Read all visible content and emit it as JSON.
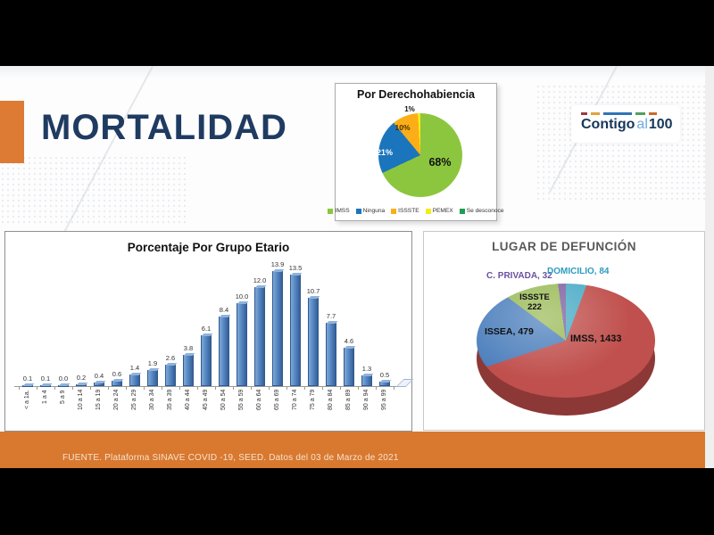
{
  "header": {
    "title": "MORTALIDAD"
  },
  "logo": {
    "word1": "Contigo",
    "word2": "al",
    "word3": "100",
    "text_color": "#16375A",
    "al_color": "#6FA8DC",
    "dash_colors": [
      "#993B3F",
      "#E0A23C",
      "#2F74B5",
      "#51A05E",
      "#C96A2E"
    ],
    "dash_widths": [
      7,
      10,
      32,
      11,
      9
    ]
  },
  "colors": {
    "accent_orange_band": "#D9782F",
    "accent_orange_rect": "#DD7A33",
    "title_navy": "#1F3B61",
    "panel3_title_gray": "#595959",
    "footer_text": "#F4E3CE"
  },
  "footer": {
    "source": "FUENTE. Plataforma SINAVE COVID -19, SEED. Datos del 03 de Marzo de 2021"
  },
  "chart_data": [
    {
      "type": "pie",
      "title": "Por Derechohabiencia",
      "legend_position": "bottom",
      "slices": [
        {
          "label": "IMSS",
          "value": 68,
          "unit": "%",
          "color": "#8CC63E",
          "data_label": "68%",
          "label_color": "#111111"
        },
        {
          "label": "Ninguna",
          "value": 21,
          "unit": "%",
          "color": "#1B75BC",
          "data_label": "21%",
          "label_color": "#FFFFFF"
        },
        {
          "label": "ISSSTE",
          "value": 10,
          "unit": "%",
          "color": "#FBAE17",
          "data_label": "10%",
          "label_color": "#4A2E00"
        },
        {
          "label": "PEMEX",
          "value": 1,
          "unit": "%",
          "color": "#F3EC19",
          "data_label": "1%",
          "label_color": "#111111"
        },
        {
          "label": "Se desconoce",
          "value": 0,
          "unit": "%",
          "color": "#1F9D55",
          "data_label": "",
          "label_color": "#111111"
        }
      ]
    },
    {
      "type": "bar",
      "title": "Porcentaje Por Grupo Etario",
      "categories": [
        "< a 1a.",
        "1 a 4",
        "5 a 9",
        "10 a 14",
        "15 a 19",
        "20 a 24",
        "25 a 29",
        "30 a 34",
        "35 a 39",
        "40 a 44",
        "45 a 49",
        "50 a 54",
        "55 a 59",
        "60 a 64",
        "65 a 69",
        "70 a 74",
        "75 a 79",
        "80 a 84",
        "85 a 89",
        "90 a 94",
        "95 a 99"
      ],
      "values": [
        0.1,
        0.1,
        0.0,
        0.2,
        0.4,
        0.6,
        1.4,
        1.9,
        2.6,
        3.8,
        6.1,
        8.4,
        10.0,
        12.0,
        13.9,
        13.5,
        10.7,
        7.7,
        4.6,
        1.3,
        0.5
      ],
      "bar_color": "#4F81BD",
      "ylim": [
        0,
        15
      ],
      "grid": false,
      "xlabel": "",
      "ylabel": ""
    },
    {
      "type": "pie",
      "title": "LUGAR DE DEFUNCIÓN",
      "style": "3d",
      "slices": [
        {
          "label": "DOMICILIO",
          "value": 84,
          "color": "#4BACC6",
          "data_label": "DOMICILIO, 84",
          "label_color": "#2E9BC0"
        },
        {
          "label": "IMSS",
          "value": 1433,
          "color": "#C0504D",
          "data_label": "IMSS, 1433",
          "label_color": "#111111"
        },
        {
          "label": "ISSEA",
          "value": 479,
          "color": "#4F81BD",
          "data_label": "ISSEA, 479",
          "label_color": "#111111"
        },
        {
          "label": "ISSSTE",
          "value": 222,
          "color": "#9BBB59",
          "data_label": "ISSSTE 222",
          "label_color": "#111111"
        },
        {
          "label": "C. PRIVADA",
          "value": 32,
          "color": "#8064A2",
          "data_label": "C. PRIVADA, 32",
          "label_color": "#6A519E"
        }
      ]
    }
  ]
}
